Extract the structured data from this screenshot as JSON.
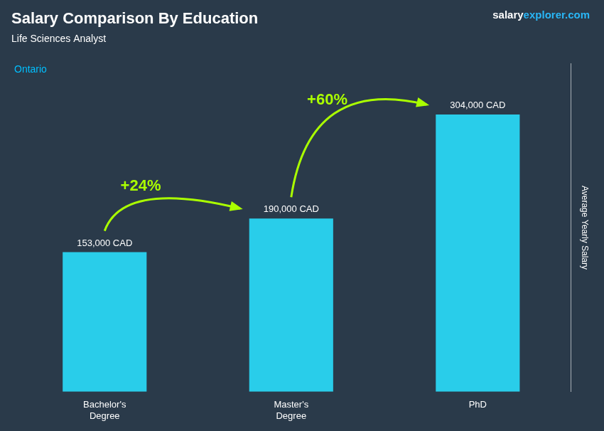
{
  "chart_data": {
    "type": "bar",
    "title": "Salary Comparison By Education",
    "subtitle": "Life Sciences Analyst",
    "location": {
      "text": "Ontario",
      "color": "#00BFFF"
    },
    "watermark": [
      {
        "text": "salary",
        "color": "#FFFFFF"
      },
      {
        "text": "explorer.com",
        "color": "#29B6F6"
      }
    ],
    "y_label": "Average Yearly Salary",
    "categories": [
      "Bachelor's\nDegree",
      "Master's\nDegree",
      "PhD"
    ],
    "values": [
      153000,
      190000,
      304000
    ],
    "value_labels": [
      "153,000 CAD",
      "190,000 CAD",
      "304,000 CAD"
    ],
    "data_labels": true,
    "color": "#29CDEA",
    "changes": {
      "color": "#AAFF00",
      "items": [
        {
          "from": "Bachelor's\nDegree",
          "to": "Master's\nDegree",
          "label": "+24%"
        },
        {
          "from": "Master's\nDegree",
          "to": "PhD",
          "label": "+60%"
        }
      ]
    },
    "ylim": [
      0,
      360000
    ],
    "grid": false,
    "tick_labels": "x"
  }
}
